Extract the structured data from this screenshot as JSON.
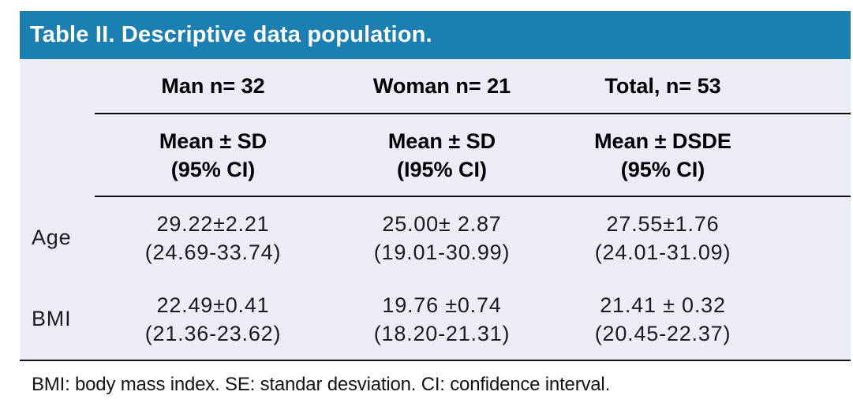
{
  "chart_data": {
    "type": "table",
    "title": "Table II. Descriptive data population.",
    "group_headers": [
      "Man n= 32",
      "Woman n= 21",
      "Total, n= 53"
    ],
    "measure_headers": [
      {
        "line1": "Mean ± SD",
        "line2": "(95% CI)"
      },
      {
        "line1": "Mean ± SD",
        "line2": "(I95% CI)"
      },
      {
        "line1": "Mean ± DSDE",
        "line2": "(95% CI)"
      }
    ],
    "rows": [
      {
        "label": "Age",
        "cells": [
          {
            "line1": "29.22±2.21",
            "line2": "(24.69-33.74)"
          },
          {
            "line1": "25.00± 2.87",
            "line2": "(19.01-30.99)"
          },
          {
            "line1": "27.55±1.76",
            "line2": "(24.01-31.09)"
          }
        ]
      },
      {
        "label": "BMI",
        "cells": [
          {
            "line1": "22.49±0.41",
            "line2": "(21.36-23.62)"
          },
          {
            "line1": "19.76 ±0.74",
            "line2": "(18.20-21.31)"
          },
          {
            "line1": "21.41 ± 0.32",
            "line2": "(20.45-22.37)"
          }
        ]
      }
    ],
    "footnote": "BMI: body mass index. SE: standar desviation. CI: confidence interval.",
    "colors": {
      "title_bg": "#1B80B1",
      "title_text": "#FFFFFF",
      "table_bg": "#EAEDF6",
      "rule": "#111111",
      "text": "#1C1C1C"
    }
  }
}
